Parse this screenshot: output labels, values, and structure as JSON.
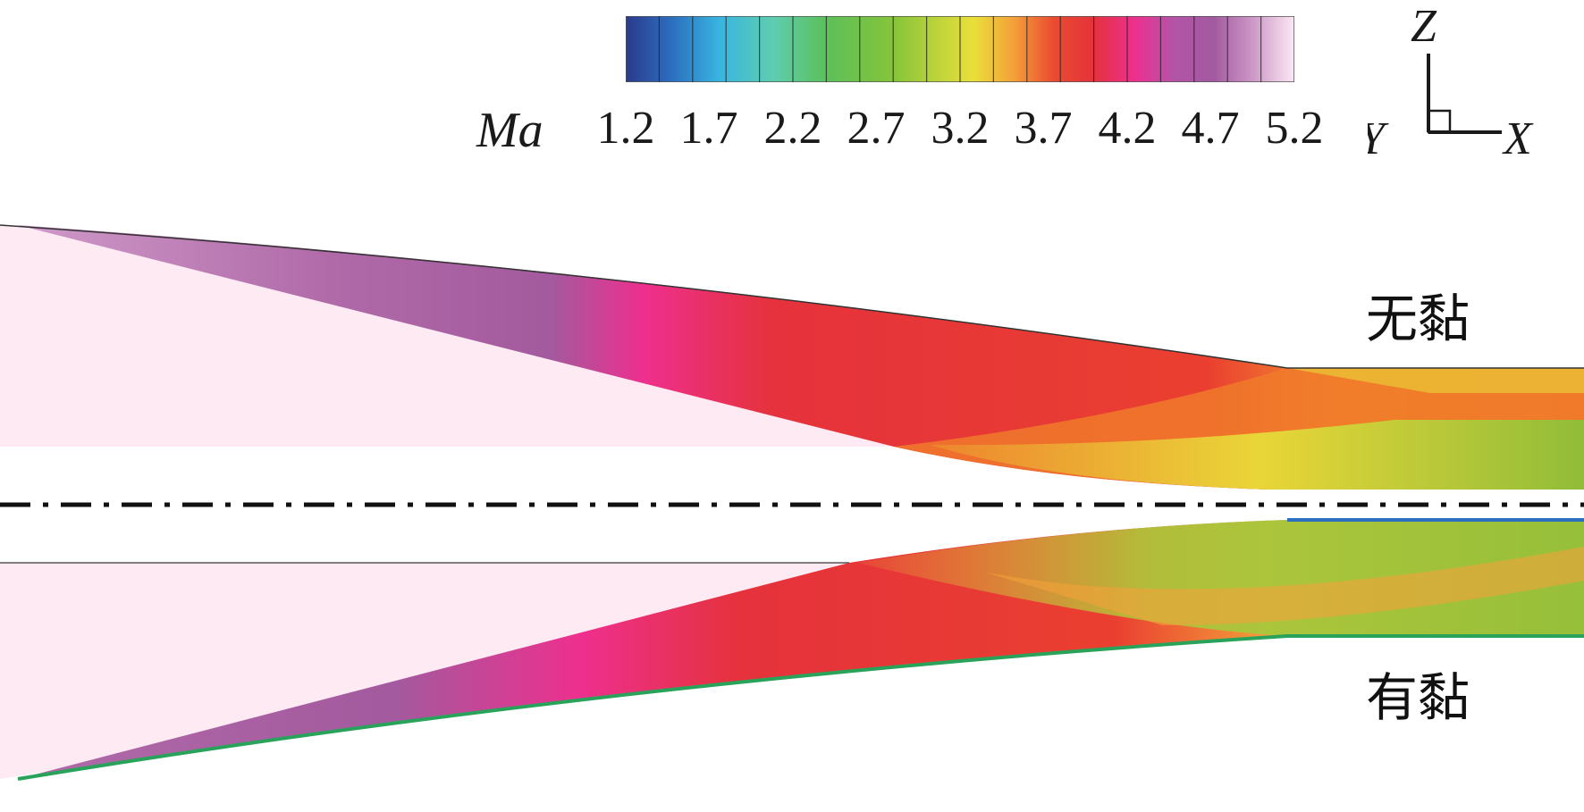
{
  "colorbar": {
    "variable_label": "Ma",
    "ticks": [
      "1.2",
      "1.7",
      "2.2",
      "2.7",
      "3.2",
      "3.7",
      "4.2",
      "4.7",
      "5.2"
    ],
    "colors": [
      "#2b3a8c",
      "#2c6fc0",
      "#38b5e0",
      "#5ecdb0",
      "#5cc05a",
      "#86c43a",
      "#e9e03a",
      "#f3a13a",
      "#ea4b30",
      "#e5323c",
      "#ee2f8e",
      "#b354a8",
      "#a35a9e",
      "#cf9ac9",
      "#fbe8f3"
    ]
  },
  "axes": {
    "z": "Z",
    "y": "Y",
    "x": "X"
  },
  "panels": {
    "upper_label": "无黏",
    "lower_label": "有黏"
  }
}
